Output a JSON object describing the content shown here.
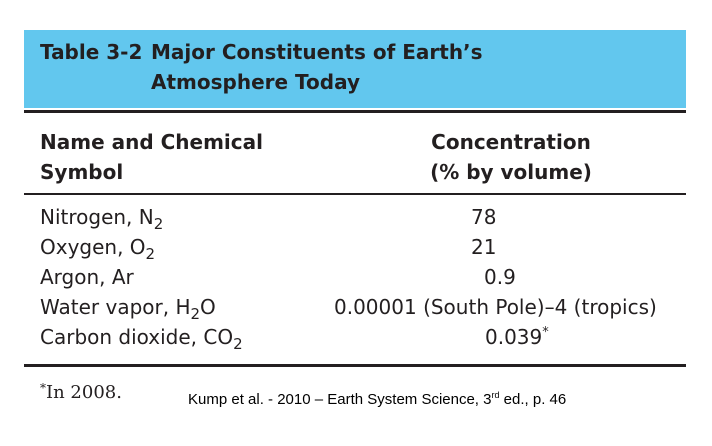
{
  "table": {
    "title_prefix": "Table 3-2",
    "title_line1": "Major Constituents of Earth’s",
    "title_line2": "Atmosphere Today",
    "header": {
      "name_line1": "Name and Chemical",
      "name_line2": "Symbol",
      "conc_line1": "Concentration",
      "conc_line2": "(% by volume)"
    },
    "rows": [
      {
        "name": "Nitrogen, N",
        "sub1": "2",
        "name_tail": "",
        "sub2": "",
        "conc": "78",
        "mark": ""
      },
      {
        "name": "Oxygen, O",
        "sub1": "2",
        "name_tail": "",
        "sub2": "",
        "conc": "21",
        "mark": ""
      },
      {
        "name": "Argon, Ar",
        "sub1": "",
        "name_tail": "",
        "sub2": "",
        "conc": "0.9",
        "mark": ""
      },
      {
        "name": "Water vapor, H",
        "sub1": "2",
        "name_tail": "O",
        "sub2": "",
        "conc": "0.00001 (South Pole)–4 (tropics)",
        "mark": ""
      },
      {
        "name": "Carbon dioxide, CO",
        "sub1": "2",
        "name_tail": "",
        "sub2": "",
        "conc": "0.039",
        "mark": "*"
      }
    ],
    "footnote_mark": "*",
    "footnote_text": "In 2008."
  },
  "source": {
    "text_before": "Kump et al. - 2010 – Earth System Science, 3",
    "sup": "rd",
    "text_after": " ed., p. 46"
  }
}
